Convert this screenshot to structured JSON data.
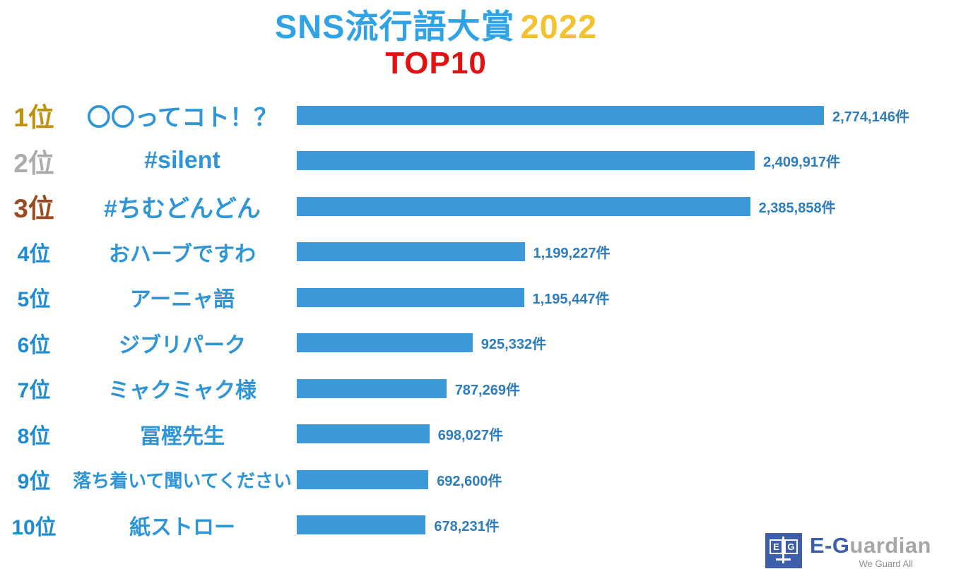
{
  "page": {
    "background": "#FFFFFF"
  },
  "header": {
    "title_main": "SNS流行語大賞",
    "title_year": "2022",
    "subtitle": "TOP10"
  },
  "chart_data": {
    "type": "bar",
    "orientation": "horizontal",
    "title": "SNS流行語大賞 2022 TOP10",
    "xlabel": "",
    "ylabel": "",
    "xlim": [
      0,
      2774146
    ],
    "grid": false,
    "legend": "none",
    "unit_suffix": "件",
    "categories": [
      "〇〇ってコト！？",
      "#silent",
      "#ちむどんどん",
      "おハーブですわ",
      "アーニャ語",
      "ジブリパーク",
      "ミャクミャク様",
      "冨樫先生",
      "落ち着いて聞いてください",
      "紙ストロー"
    ],
    "values": [
      2774146,
      2409917,
      2385858,
      1199227,
      1195447,
      925332,
      787269,
      698027,
      692600,
      678231
    ],
    "rank_labels": [
      "1位",
      "2位",
      "3位",
      "4位",
      "5位",
      "6位",
      "7位",
      "8位",
      "9位",
      "10位"
    ],
    "value_labels": [
      "2,774,146件",
      "2,409,917件",
      "2,385,858件",
      "1,199,227件",
      "1,195,447件",
      "925,332件",
      "787,269件",
      "698,027件",
      "692,600件",
      "678,231件"
    ],
    "bar_color": "#3D98D8",
    "term_color": "#2E96D6",
    "value_color": "#2D7DBC",
    "rank_colors": {
      "gold": "#BE9210",
      "silver": "#ACACAC",
      "bronze": "#9A4A1E",
      "default": "#1F8BD0"
    },
    "title_colors": {
      "main": "#2FA3E6",
      "year": "#F2C233",
      "subtitle": "#E31212"
    }
  },
  "footer_logo": {
    "monogram_e": "E",
    "monogram_g": "G",
    "name_blue": "E-G",
    "name_gray": "uardian",
    "tagline": "We Guard All"
  }
}
